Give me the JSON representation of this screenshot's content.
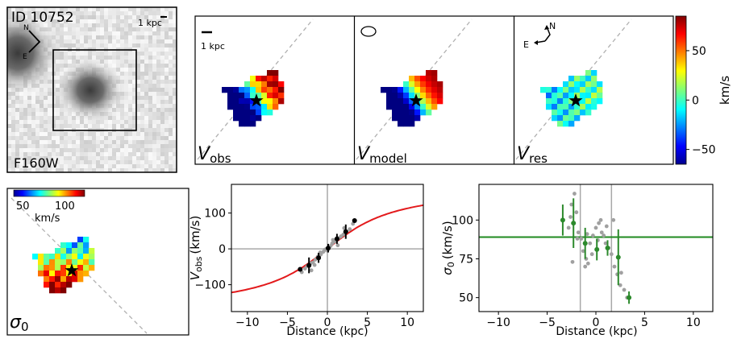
{
  "hst_panel": {
    "id_label": "ID 10752",
    "scale_label": "1 kpc",
    "north_label": "N",
    "east_label": "E",
    "filter_label": "F160W"
  },
  "velocity_maps": {
    "scale_label": "1 kpc",
    "compass": {
      "north": "N",
      "east": "E"
    },
    "panels": [
      {
        "symbol": "V",
        "subscript": "obs"
      },
      {
        "symbol": "V",
        "subscript": "model"
      },
      {
        "symbol": "V",
        "subscript": "res"
      }
    ],
    "colorbar": {
      "label": "km/s",
      "ticks": [
        "50",
        "0",
        "−50"
      ],
      "tick_values": [
        50,
        0,
        -50
      ],
      "range": [
        -65,
        85
      ]
    }
  },
  "dispersion_map": {
    "colorbar_ticks": [
      "50",
      "100"
    ],
    "colorbar_label": "km/s",
    "label_symbol": "σ",
    "label_subscript": "0"
  },
  "colors": {
    "model_curve": "#e31a1c",
    "sigma_points": "#2c8a2c",
    "sigma_line": "#1f8a1f",
    "grey_points": "#a0a0a0",
    "star": "#000000"
  },
  "chart_data": [
    {
      "type": "scatter",
      "xlabel": "Distance (kpc)",
      "ylabel_symbol": "V",
      "ylabel_subscript": "obs",
      "ylabel_unit": "(km/s)",
      "xlim": [
        -12,
        12
      ],
      "ylim": [
        -175,
        180
      ],
      "xticks": [
        -10,
        -5,
        0,
        5,
        10
      ],
      "yticks": [
        -100,
        0,
        100
      ],
      "model_curve": {
        "vmax": 176,
        "rt": 6.3
      },
      "binned": {
        "x": [
          -3.4,
          -2.3,
          -1.1,
          0.1,
          1.2,
          2.3,
          3.4
        ],
        "y": [
          -57,
          -46,
          -25,
          2,
          28,
          48,
          79
        ],
        "yerr": [
          0,
          22,
          14,
          12,
          14,
          20,
          0
        ]
      },
      "grey_points": {
        "x": [
          -3.2,
          -2.8,
          -2.5,
          -2.1,
          -1.8,
          -1.5,
          -1.2,
          -1.0,
          -0.8,
          -0.5,
          -0.3,
          -0.1,
          0.2,
          0.4,
          0.6,
          0.9,
          1.1,
          1.4,
          1.7,
          2.0,
          2.4,
          2.8,
          3.2,
          -2.0,
          -1.6,
          -0.9,
          0.0,
          0.7,
          1.3,
          2.1
        ],
        "y": [
          -65,
          -55,
          -48,
          -40,
          -38,
          -30,
          -22,
          -20,
          -15,
          -8,
          -2,
          0,
          5,
          8,
          15,
          20,
          22,
          30,
          35,
          40,
          48,
          55,
          70,
          -60,
          -45,
          -10,
          -5,
          25,
          10,
          58
        ]
      }
    },
    {
      "type": "scatter",
      "xlabel": "Distance (kpc)",
      "ylabel_symbol": "σ",
      "ylabel_subscript": "0",
      "ylabel_unit": "(km/s)",
      "xlim": [
        -12,
        12
      ],
      "ylim": [
        41,
        123
      ],
      "xticks": [
        -10,
        -5,
        0,
        5,
        10
      ],
      "yticks": [
        50,
        75,
        100
      ],
      "sigma_mean": 89,
      "vlines": [
        -1.6,
        1.6
      ],
      "binned": {
        "x": [
          -3.4,
          -2.3,
          -1.1,
          0.1,
          1.2,
          2.3,
          3.4
        ],
        "y": [
          100,
          98,
          85,
          81,
          82,
          76,
          50
        ],
        "yerr": [
          10,
          16,
          10,
          7,
          5,
          18,
          4
        ]
      },
      "grey_points": {
        "x": [
          -2.8,
          -2.5,
          -2.2,
          -2.0,
          -1.8,
          -1.5,
          -1.3,
          -1.0,
          -0.8,
          -0.6,
          -0.3,
          0.0,
          0.3,
          0.5,
          0.8,
          1.0,
          1.3,
          1.6,
          1.9,
          2.2,
          2.5,
          2.9,
          3.2,
          -2.6,
          -1.9,
          -1.1,
          -0.4,
          0.6,
          1.1,
          1.8,
          -2.4,
          -0.9,
          0.2,
          2.6
        ],
        "y": [
          95,
          110,
          117,
          105,
          92,
          88,
          80,
          75,
          72,
          85,
          90,
          95,
          98,
          100,
          90,
          85,
          82,
          78,
          70,
          65,
          58,
          55,
          50,
          102,
          88,
          70,
          78,
          92,
          96,
          100,
          73,
          91,
          87,
          66
        ]
      }
    }
  ]
}
